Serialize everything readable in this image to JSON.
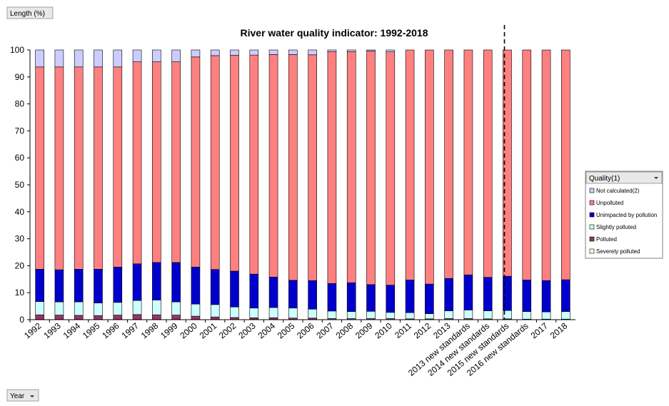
{
  "chart_data": {
    "type": "stacked_bar",
    "title": "River water quality indicator: 1992-2018",
    "y_button": "Length (%)",
    "x_button": "Year",
    "legend_title": "Quality(1)",
    "categories": [
      "1992",
      "1993",
      "1994",
      "1995",
      "1996",
      "1997",
      "1998",
      "1999",
      "2000",
      "2001",
      "2002",
      "2003",
      "2004",
      "2005",
      "2006",
      "2007",
      "2008",
      "2009",
      "2010",
      "2011",
      "2012",
      "2013",
      "2013 new standards",
      "2014 new standards",
      "2015 new standards",
      "2016 new standards",
      "2017",
      "2018"
    ],
    "series": [
      {
        "name": "Severely polluted",
        "color": "#ffffcc",
        "values": [
          0.1,
          0.1,
          0.1,
          0.1,
          0.1,
          0.1,
          0.1,
          0.1,
          0.1,
          0.1,
          0.1,
          0.1,
          0.1,
          0.1,
          0.1,
          0,
          0,
          0,
          0,
          0,
          0,
          0,
          0,
          0,
          0,
          0,
          0,
          0
        ]
      },
      {
        "name": "Polluted",
        "color": "#993366",
        "values": [
          1.7,
          1.6,
          1.5,
          1.4,
          1.6,
          1.8,
          1.7,
          1.6,
          1.2,
          0.9,
          0.7,
          0.6,
          0.6,
          0.5,
          0.5,
          0.4,
          0.4,
          0.4,
          0.4,
          0.3,
          0.3,
          0.4,
          0.4,
          0.3,
          0.3,
          0.2,
          0.2,
          0.2
        ]
      },
      {
        "name": "Slightly polluted",
        "color": "#ccffff",
        "values": [
          4.9,
          4.9,
          5.0,
          4.7,
          4.7,
          5.2,
          5.5,
          4.9,
          4.5,
          4.6,
          3.9,
          3.6,
          3.8,
          3.7,
          3.3,
          2.8,
          2.6,
          2.7,
          2.3,
          2.3,
          1.9,
          2.9,
          3.2,
          3.0,
          3.1,
          2.8,
          2.7,
          2.8
        ]
      },
      {
        "name": "Unimpacted by pollution",
        "color": "#0000cc",
        "values": [
          12.0,
          11.9,
          12.1,
          12.5,
          13.1,
          13.6,
          13.9,
          14.6,
          13.7,
          13.0,
          13.3,
          12.6,
          11.3,
          10.3,
          10.6,
          10.2,
          10.7,
          9.9,
          10.1,
          12.1,
          11.0,
          12.0,
          13.0,
          12.4,
          12.7,
          11.7,
          11.6,
          11.8
        ]
      },
      {
        "name": "Unpolluted",
        "color": "#ff8080",
        "values": [
          75.0,
          75.2,
          75.0,
          75.0,
          74.2,
          74.9,
          74.4,
          74.4,
          77.9,
          79.3,
          80.0,
          81.2,
          82.5,
          83.7,
          83.7,
          86.0,
          85.7,
          86.6,
          86.5,
          85.3,
          86.8,
          84.7,
          83.4,
          84.3,
          83.9,
          85.3,
          85.5,
          85.2
        ]
      },
      {
        "name": "Not calculated(2)",
        "color": "#ccccff",
        "values": [
          6.3,
          6.3,
          6.3,
          6.3,
          6.3,
          4.4,
          4.4,
          4.4,
          2.6,
          2.1,
          2.0,
          1.9,
          1.7,
          1.7,
          1.8,
          0.6,
          0.6,
          0.4,
          0.7,
          0,
          0,
          0,
          0,
          0,
          0,
          0,
          0,
          0
        ]
      }
    ],
    "ylim": [
      0,
      100
    ],
    "yticks": [
      0,
      10,
      20,
      30,
      40,
      50,
      60,
      70,
      80,
      90,
      100
    ],
    "grid": false
  }
}
